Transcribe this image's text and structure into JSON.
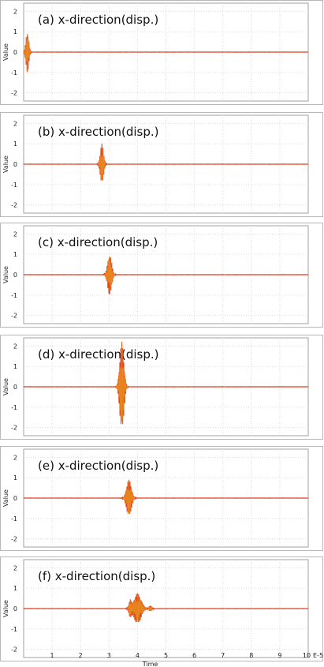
{
  "chart_data": [
    {
      "type": "line",
      "title": "(a) x-direction(disp.)",
      "ylabel": "Value",
      "ylim": [
        -2.4,
        2.4
      ],
      "yticks": [
        -2,
        -1,
        0,
        1,
        2
      ],
      "pulse": {
        "center": 0.13,
        "width": 0.07,
        "amplitude": 1.0,
        "frequency": 55,
        "secondary": []
      }
    },
    {
      "type": "line",
      "title": "(b) x-direction(disp.)",
      "ylabel": "Value",
      "ylim": [
        -2.4,
        2.4
      ],
      "yticks": [
        -2,
        -1,
        0,
        1,
        2
      ],
      "pulse": {
        "center": 2.75,
        "width": 0.08,
        "amplitude": 1.0,
        "frequency": 55,
        "secondary": []
      }
    },
    {
      "type": "line",
      "title": "(c) x-direction(disp.)",
      "ylabel": "Value",
      "ylim": [
        -2.4,
        2.4
      ],
      "yticks": [
        -2,
        -1,
        0,
        1,
        2
      ],
      "pulse": {
        "center": 3.02,
        "width": 0.1,
        "amplitude": 1.0,
        "frequency": 55,
        "secondary": []
      }
    },
    {
      "type": "line",
      "title": "(d) x-direction(disp.)",
      "ylabel": "Value",
      "ylim": [
        -2.4,
        2.4
      ],
      "yticks": [
        -2,
        -1,
        0,
        1,
        2
      ],
      "pulse": {
        "center": 3.45,
        "width": 0.1,
        "amplitude": 2.2,
        "frequency": 55,
        "secondary": []
      }
    },
    {
      "type": "line",
      "title": "(e) x-direction(disp.)",
      "ylabel": "Value",
      "ylim": [
        -2.4,
        2.4
      ],
      "yticks": [
        -2,
        -1,
        0,
        1,
        2
      ],
      "pulse": {
        "center": 3.7,
        "width": 0.12,
        "amplitude": 0.9,
        "frequency": 55,
        "secondary": []
      }
    },
    {
      "type": "line",
      "title": "(f) x-direction(disp.)",
      "ylabel": "Value",
      "ylim": [
        -2.4,
        2.4
      ],
      "yticks": [
        -2,
        -1,
        0,
        1,
        2
      ],
      "pulse": {
        "center": 4.0,
        "width": 0.18,
        "amplitude": 0.75,
        "frequency": 55,
        "secondary": [
          {
            "center": 3.75,
            "width": 0.07,
            "amplitude": 0.45
          },
          {
            "center": 4.45,
            "width": 0.07,
            "amplitude": 0.15
          }
        ]
      }
    }
  ],
  "xaxis": {
    "label": "Time",
    "range": [
      0,
      10
    ],
    "ticks": [
      1,
      2,
      3,
      4,
      5,
      6,
      7,
      8,
      9,
      10
    ],
    "exponent": "E-5"
  },
  "colors": {
    "signal": "#d62020",
    "signal_core": "#f0b020",
    "frame": "#b8b8b8",
    "grid": "#dcdcdc"
  }
}
